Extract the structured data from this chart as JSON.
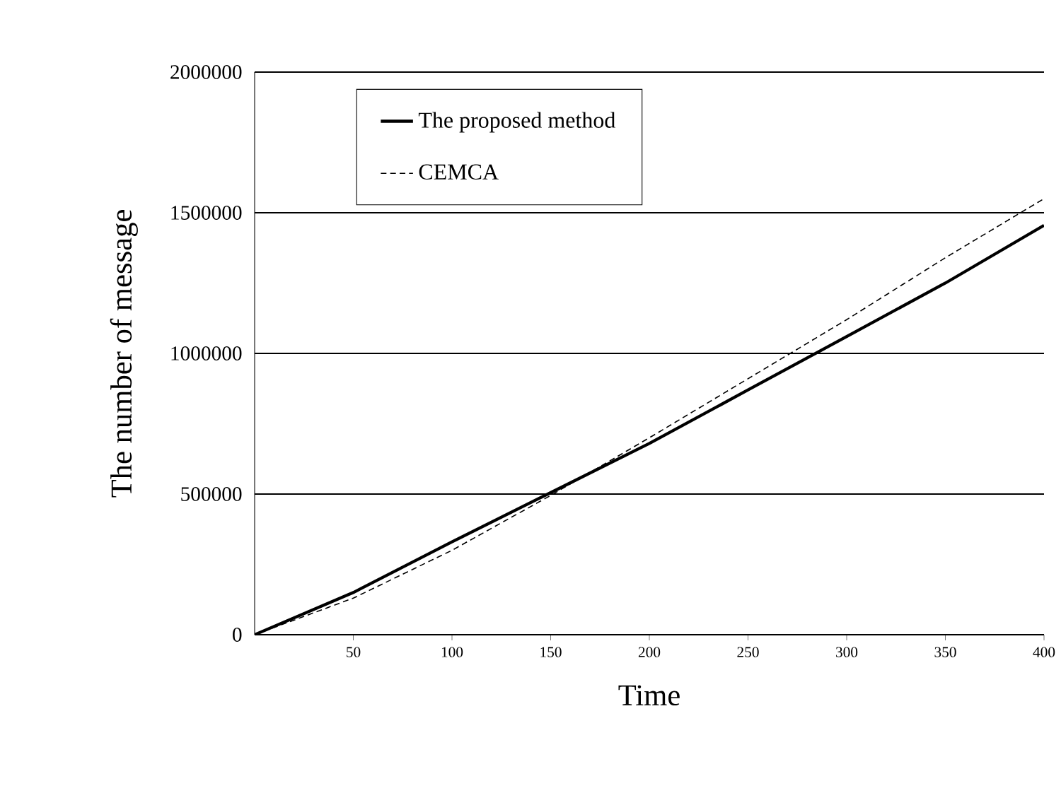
{
  "chart_data": {
    "type": "line",
    "xlabel": "Time",
    "ylabel": "The number of message",
    "x": [
      0,
      50,
      100,
      150,
      200,
      250,
      300,
      350,
      400
    ],
    "series": [
      {
        "name": "The proposed method",
        "color": "#000000",
        "line_style": "solid",
        "values": [
          0,
          150000,
          330000,
          505000,
          680000,
          870000,
          1060000,
          1250000,
          1455000
        ]
      },
      {
        "name": "CEMCA",
        "color": "#000000",
        "line_style": "dashed",
        "values": [
          0,
          130000,
          300000,
          495000,
          700000,
          910000,
          1120000,
          1340000,
          1550000
        ]
      }
    ],
    "xlim": [
      0,
      400
    ],
    "xticks": [
      50,
      100,
      150,
      200,
      250,
      300,
      350,
      400
    ],
    "ylim": [
      0,
      2000000
    ],
    "yticks": [
      0,
      500000,
      1000000,
      1500000,
      2000000
    ],
    "grid": "y",
    "legend": "top",
    "marker": "none"
  }
}
